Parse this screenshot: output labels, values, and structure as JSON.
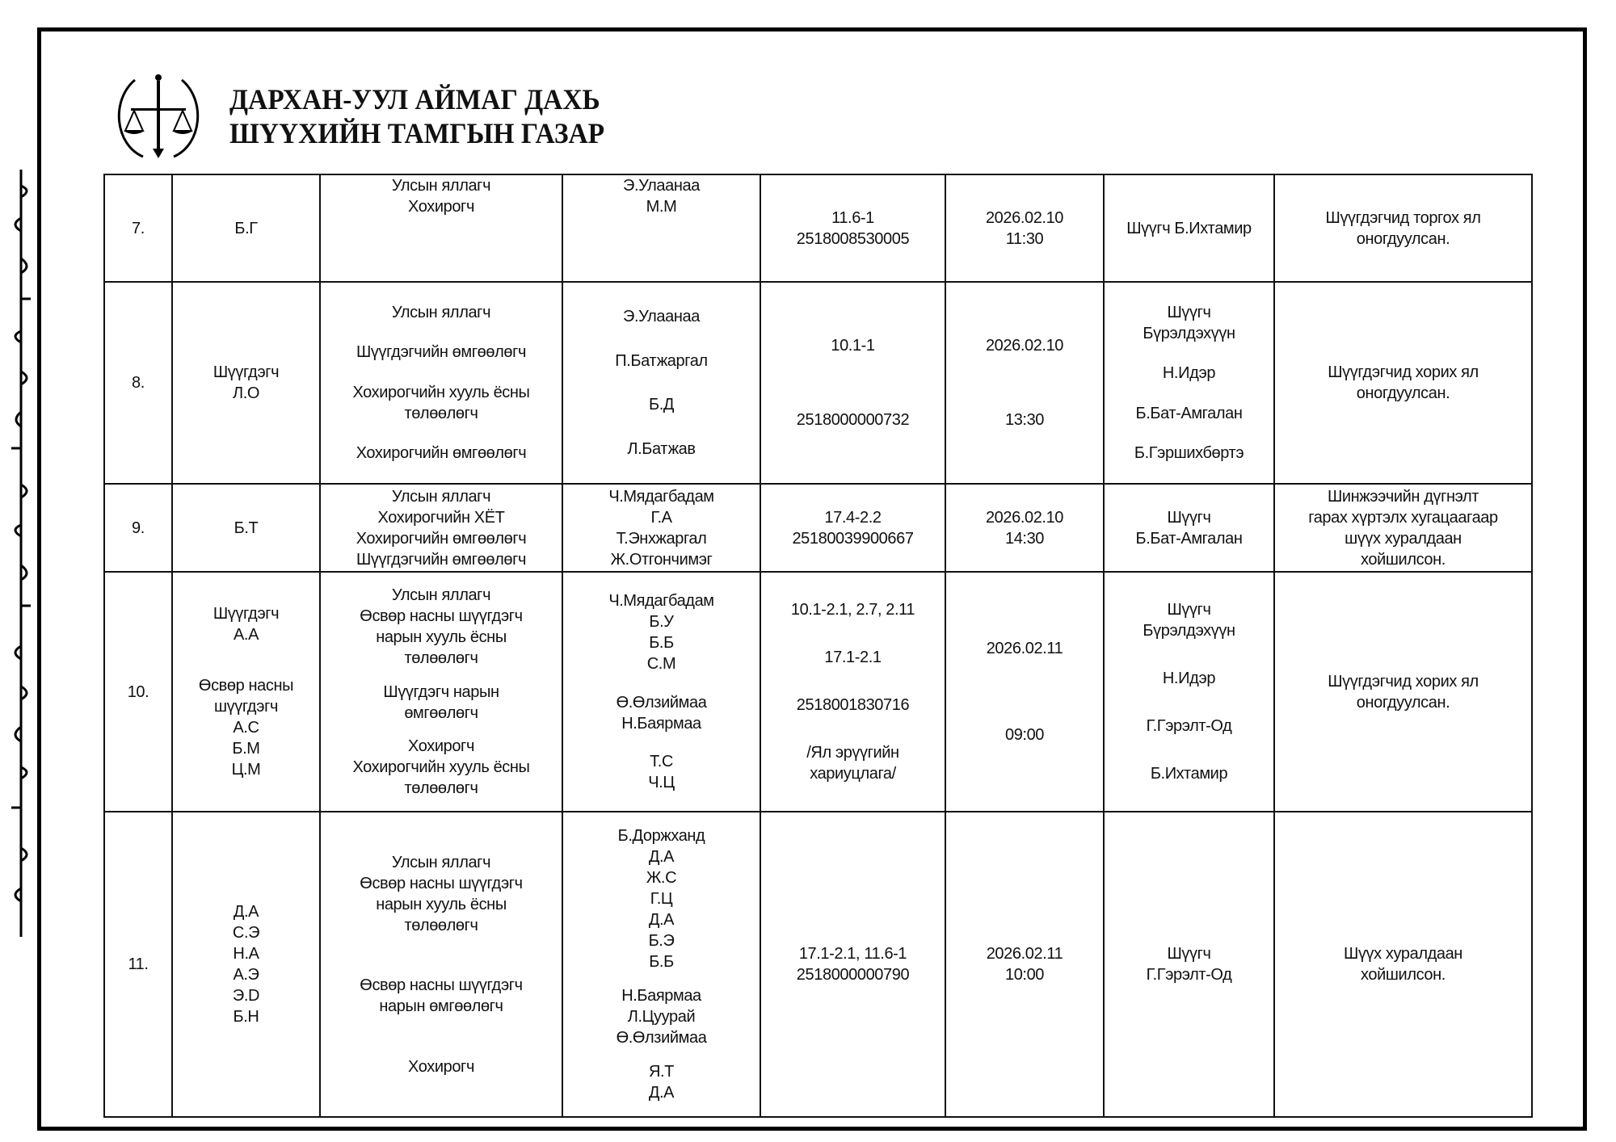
{
  "header": {
    "title_line1": "ДАРХАН-УУЛ АЙМАГ ДАХЬ",
    "title_line2": "ШҮҮХИЙН ТАМГЫН ГАЗАР",
    "logo": "court-emblem-scales-wreath"
  },
  "rows": [
    {
      "no": "7.",
      "defendant": [
        [
          "Б.Г"
        ]
      ],
      "roles": [
        [
          "Улсын яллагч",
          "Хохирогч"
        ]
      ],
      "names": [
        [
          "Э.Улаанаа",
          "М.М"
        ]
      ],
      "case": [
        [
          "11.6-1",
          "2518008530005"
        ]
      ],
      "datetime": [
        [
          "2026.02.10",
          "11:30"
        ]
      ],
      "judge": [
        [
          "Шүүгч Б.Ихтамир"
        ]
      ],
      "result": [
        [
          "Шүүгдэгчид торгох ял",
          "оногдуулсан."
        ]
      ]
    },
    {
      "no": "8.",
      "defendant": [
        [
          "Шүүгдэгч",
          "Л.О"
        ]
      ],
      "roles": [
        [
          "Улсын яллагч"
        ],
        [
          "Шүүгдэгчийн өмгөөлөгч"
        ],
        [
          "Хохирогчийн хууль ёсны",
          "төлөөлөгч"
        ],
        [
          "Хохирогчийн өмгөөлөгч"
        ]
      ],
      "names": [
        [
          "Э.Улаанаа"
        ],
        [
          "П.Батжаргал"
        ],
        [
          "Б.Д"
        ],
        [
          "Л.Батжав"
        ]
      ],
      "case": [
        [
          "10.1-1"
        ],
        [
          "2518000000732"
        ]
      ],
      "datetime": [
        [
          "2026.02.10"
        ],
        [
          "13:30"
        ]
      ],
      "judge": [
        [
          "Шүүгч",
          "Бүрэлдэхүүн"
        ],
        [
          "Н.Идэр"
        ],
        [
          "Б.Бат-Амгалан"
        ],
        [
          "Б.Гэршихбөртэ"
        ]
      ],
      "result": [
        [
          "Шүүгдэгчид хорих ял",
          "оногдуулсан."
        ]
      ]
    },
    {
      "no": "9.",
      "defendant": [
        [
          "Б.Т"
        ]
      ],
      "roles": [
        [
          "Улсын яллагч",
          "Хохирогчийн ХЁТ",
          "Хохирогчийн өмгөөлөгч",
          "Шүүгдэгчийн өмгөөлөгч"
        ]
      ],
      "names": [
        [
          "Ч.Мядагбадам",
          "Г.А",
          "Т.Энхжаргал",
          "Ж.Отгончимэг"
        ]
      ],
      "case": [
        [
          "17.4-2.2",
          "25180039900667"
        ]
      ],
      "datetime": [
        [
          "2026.02.10",
          "14:30"
        ]
      ],
      "judge": [
        [
          "Шүүгч",
          "Б.Бат-Амгалан"
        ]
      ],
      "result": [
        [
          "Шинжээчийн дүгнэлт",
          "гарах хүртэлх хугацаагаар",
          "шүүх хуралдаан",
          "хойшилсон."
        ]
      ]
    },
    {
      "no": "10.",
      "defendant": [
        [
          "Шүүгдэгч",
          "А.А"
        ],
        [
          "Өсвөр насны",
          "шүүгдэгч",
          "А.С",
          "Б.М",
          "Ц.М"
        ]
      ],
      "roles": [
        [
          "Улсын яллагч",
          "Өсвөр насны шүүгдэгч",
          "нарын хууль ёсны",
          "төлөөлөгч"
        ],
        [
          "Шүүгдэгч нарын",
          "өмгөөлөгч"
        ],
        [
          "Хохирогч",
          "Хохирогчийн хууль ёсны",
          "төлөөлөгч"
        ]
      ],
      "names": [
        [
          "Ч.Мядагбадам",
          "Б.У",
          "Б.Б",
          "С.М"
        ],
        [
          "Ө.Өлзиймаа",
          "Н.Баярмаа"
        ],
        [
          "Т.С",
          "Ч.Ц"
        ]
      ],
      "case": [
        [
          "10.1-2.1, 2.7, 2.11"
        ],
        [
          "17.1-2.1"
        ],
        [
          "2518001830716"
        ],
        [
          "/Ял эрүүгийн",
          "хариуцлага/"
        ]
      ],
      "datetime": [
        [
          "2026.02.11"
        ],
        [
          "09:00"
        ]
      ],
      "judge": [
        [
          "Шүүгч",
          "Бүрэлдэхүүн"
        ],
        [
          "Н.Идэр"
        ],
        [
          "Г.Гэрэлт-Од"
        ],
        [
          "Б.Ихтамир"
        ]
      ],
      "result": [
        [
          "Шүүгдэгчид хорих ял",
          "оногдуулсан."
        ]
      ]
    },
    {
      "no": "11.",
      "defendant": [
        [
          "Д.А",
          "С.Э",
          "Н.А",
          "А.Э",
          "Э.D",
          "Б.Н"
        ]
      ],
      "roles": [
        [
          "Улсын яллагч",
          "Өсвөр насны шүүгдэгч",
          "нарын хууль ёсны",
          "төлөөлөгч"
        ],
        [
          "Өсвөр насны шүүгдэгч",
          "нарын өмгөөлөгч"
        ],
        [
          "Хохирогч"
        ]
      ],
      "names": [
        [
          "Б.Доржханд",
          "Д.А",
          "Ж.С",
          "Г.Ц",
          "Д.А",
          "Б.Э",
          "Б.Б"
        ],
        [
          "Н.Баярмаа",
          "Л.Цуурай",
          "Ө.Өлзиймаа"
        ],
        [
          "Я.Т",
          "Д.А"
        ]
      ],
      "case": [
        [
          "17.1-2.1, 11.6-1",
          "2518000000790"
        ]
      ],
      "datetime": [
        [
          "2026.02.11",
          "10:00"
        ]
      ],
      "judge": [
        [
          "Шүүгч",
          "Г.Гэрэлт-Од"
        ]
      ],
      "result": [
        [
          "Шүүх хуралдаан",
          "хойшилсон."
        ]
      ]
    }
  ]
}
